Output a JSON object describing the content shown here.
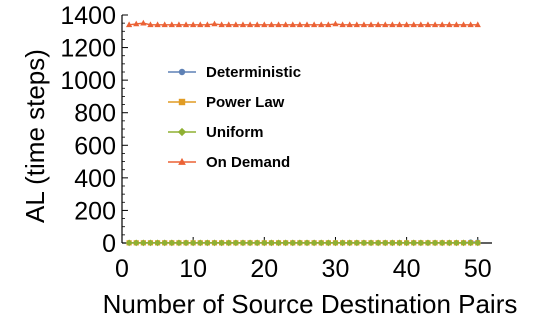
{
  "chart_data": {
    "type": "line",
    "title": "",
    "xlabel": "Number of Source Destination Pairs",
    "ylabel": "AL (time steps)",
    "xlim": [
      0,
      52
    ],
    "ylim": [
      0,
      1400
    ],
    "xticks": [
      0,
      10,
      20,
      30,
      40,
      50
    ],
    "yticks": [
      0,
      200,
      400,
      600,
      800,
      1000,
      1200,
      1400
    ],
    "grid": false,
    "legend_position": "center-left",
    "x": [
      1,
      2,
      3,
      4,
      5,
      6,
      7,
      8,
      9,
      10,
      11,
      12,
      13,
      14,
      15,
      16,
      17,
      18,
      19,
      20,
      21,
      22,
      23,
      24,
      25,
      26,
      27,
      28,
      29,
      30,
      31,
      32,
      33,
      34,
      35,
      36,
      37,
      38,
      39,
      40,
      41,
      42,
      43,
      44,
      45,
      46,
      47,
      48,
      49,
      50
    ],
    "series": [
      {
        "name": "Deterministic",
        "color": "#5e81b5",
        "marker": "circle",
        "values": [
          2,
          2,
          2,
          2,
          2,
          2,
          2,
          2,
          2,
          2,
          2,
          2,
          2,
          2,
          2,
          2,
          2,
          2,
          2,
          2,
          2,
          2,
          2,
          2,
          2,
          2,
          2,
          2,
          2,
          2,
          2,
          2,
          2,
          2,
          2,
          2,
          2,
          2,
          2,
          2,
          2,
          2,
          2,
          2,
          2,
          2,
          2,
          2,
          6,
          6
        ]
      },
      {
        "name": "Power Law",
        "color": "#e19c24",
        "marker": "square",
        "values": [
          1,
          1,
          1,
          1,
          1,
          1,
          1,
          1,
          1,
          1,
          1,
          1,
          1,
          1,
          1,
          1,
          1,
          1,
          1,
          1,
          1,
          1,
          1,
          1,
          1,
          1,
          1,
          1,
          1,
          1,
          1,
          1,
          1,
          1,
          1,
          1,
          1,
          1,
          1,
          1,
          1,
          1,
          1,
          1,
          1,
          1,
          1,
          1,
          1,
          1
        ]
      },
      {
        "name": "Uniform",
        "color": "#8fb032",
        "marker": "diamond",
        "values": [
          1,
          1,
          1,
          1,
          1,
          1,
          1,
          1,
          1,
          1,
          1,
          1,
          1,
          1,
          1,
          1,
          1,
          1,
          1,
          1,
          1,
          1,
          1,
          1,
          1,
          1,
          1,
          1,
          1,
          1,
          1,
          1,
          1,
          1,
          1,
          1,
          1,
          1,
          1,
          1,
          1,
          1,
          1,
          1,
          1,
          1,
          1,
          1,
          1,
          1
        ]
      },
      {
        "name": "On Demand",
        "color": "#eb6235",
        "marker": "triangle",
        "values": [
          1340,
          1345,
          1350,
          1340,
          1340,
          1340,
          1340,
          1340,
          1340,
          1340,
          1340,
          1340,
          1345,
          1340,
          1340,
          1340,
          1340,
          1340,
          1340,
          1340,
          1340,
          1340,
          1340,
          1340,
          1340,
          1340,
          1340,
          1340,
          1340,
          1345,
          1340,
          1340,
          1340,
          1340,
          1340,
          1340,
          1340,
          1340,
          1340,
          1340,
          1340,
          1340,
          1340,
          1340,
          1340,
          1340,
          1340,
          1340,
          1340,
          1340
        ]
      }
    ]
  }
}
